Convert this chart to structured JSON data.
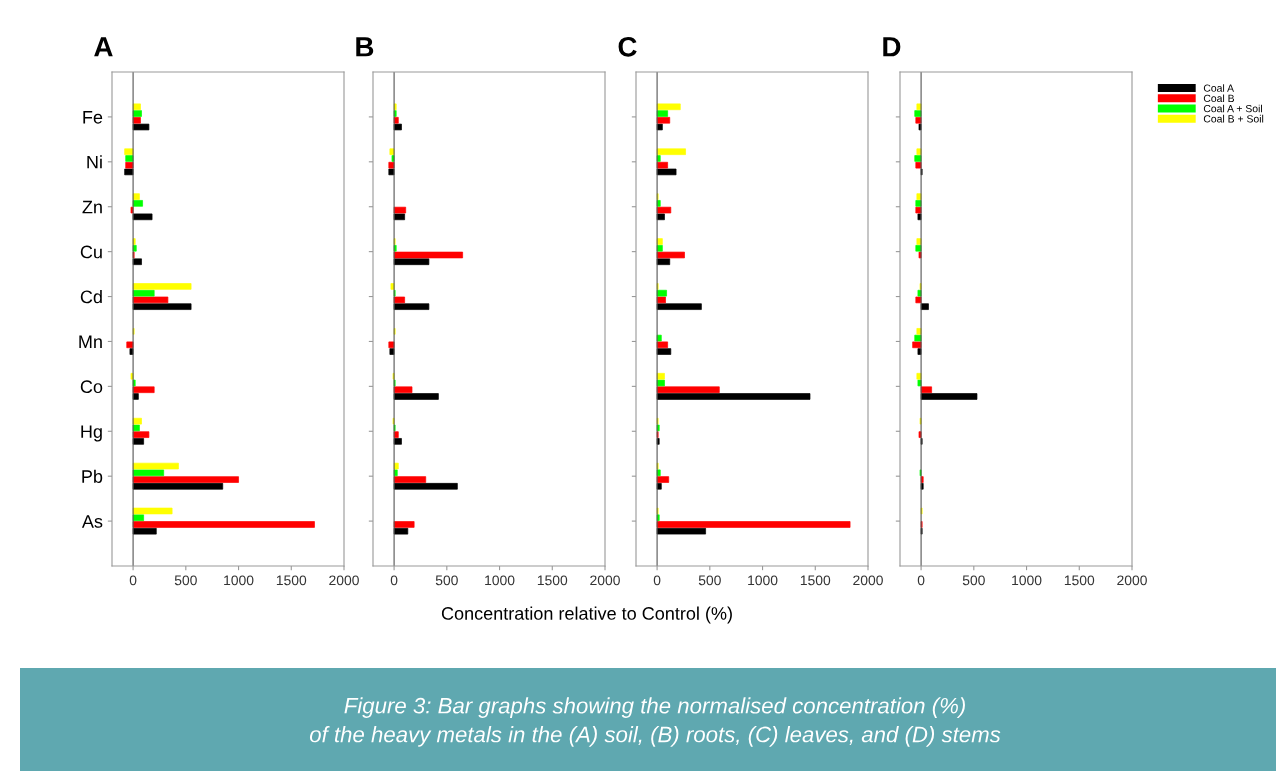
{
  "chart_data": [
    {
      "type": "bar",
      "orientation": "horizontal",
      "title": "A",
      "xlabel": "Concentration relative to Control (%)",
      "annotations": [
        "Figure 3: Bar graphs showing the normalised concentration (%)\nof the heavy metals in the (A) soil, (B) roots, (C) leaves, and (D) stems"
      ],
      "categories": [
        "Fe",
        "Ni",
        "Zn",
        "Cu",
        "Cd",
        "Mn",
        "Co",
        "Hg",
        "Pb",
        "As"
      ],
      "xlim": [
        -200,
        2000
      ],
      "xticks": [
        0,
        500,
        1000,
        1500,
        2000
      ],
      "legend": "top right",
      "series": [
        {
          "name": "Coal A",
          "color": "#000000",
          "values": [
            150,
            -80,
            180,
            80,
            550,
            -30,
            50,
            100,
            850,
            220
          ]
        },
        {
          "name": "Coal B",
          "color": "#ff0000",
          "values": [
            70,
            -70,
            -20,
            10,
            330,
            -60,
            200,
            150,
            1000,
            1720
          ]
        },
        {
          "name": "Coal A + Soil",
          "color": "#00ff00",
          "values": [
            80,
            -70,
            90,
            30,
            200,
            null,
            20,
            60,
            290,
            100
          ]
        },
        {
          "name": "Coal B + Soil",
          "color": "#ffff00",
          "values": [
            70,
            -80,
            60,
            20,
            550,
            10,
            -20,
            80,
            430,
            370
          ]
        }
      ]
    },
    {
      "type": "bar",
      "orientation": "horizontal",
      "title": "B",
      "tick_labels": "x",
      "categories": [
        null,
        null,
        null,
        null,
        null,
        null,
        null,
        null,
        null,
        null
      ],
      "xlim": [
        -200,
        2000
      ],
      "xticks": [
        0,
        500,
        1000,
        1500,
        2000
      ],
      "series": [
        {
          "color": "#000000",
          "values": [
            70,
            -50,
            100,
            330,
            330,
            -40,
            420,
            70,
            600,
            130
          ]
        },
        {
          "color": "#ff0000",
          "values": [
            40,
            -50,
            110,
            650,
            100,
            -50,
            170,
            40,
            300,
            190
          ]
        },
        {
          "color": "#00ff00",
          "values": [
            20,
            -20,
            null,
            20,
            10,
            null,
            10,
            10,
            30,
            null
          ]
        },
        {
          "color": "#ffff00",
          "values": [
            20,
            -40,
            null,
            10,
            -30,
            10,
            -10,
            -10,
            40,
            null
          ]
        }
      ]
    },
    {
      "type": "bar",
      "orientation": "horizontal",
      "title": "C",
      "tick_labels": "x",
      "categories": [
        null,
        null,
        null,
        null,
        null,
        null,
        null,
        null,
        null,
        null
      ],
      "xlim": [
        -200,
        2000
      ],
      "xticks": [
        0,
        500,
        1000,
        1500,
        2000
      ],
      "series": [
        {
          "color": "#000000",
          "values": [
            50,
            180,
            70,
            120,
            420,
            130,
            1450,
            20,
            40,
            460
          ]
        },
        {
          "color": "#ff0000",
          "values": [
            120,
            100,
            130,
            260,
            80,
            100,
            590,
            10,
            110,
            1830
          ]
        },
        {
          "color": "#00ff00",
          "values": [
            100,
            30,
            30,
            50,
            90,
            40,
            70,
            20,
            30,
            20
          ]
        },
        {
          "color": "#ffff00",
          "values": [
            220,
            270,
            10,
            50,
            10,
            null,
            70,
            10,
            10,
            10
          ]
        }
      ]
    },
    {
      "type": "bar",
      "orientation": "horizontal",
      "title": "D",
      "tick_labels": "x",
      "categories": [
        null,
        null,
        null,
        null,
        null,
        null,
        null,
        null,
        null,
        null
      ],
      "xlim": [
        -200,
        2000
      ],
      "xticks": [
        0,
        500,
        1000,
        1500,
        2000
      ],
      "series": [
        {
          "color": "#000000",
          "values": [
            -20,
            10,
            -30,
            null,
            70,
            -30,
            530,
            10,
            20,
            10
          ]
        },
        {
          "color": "#ff0000",
          "values": [
            -50,
            -50,
            -50,
            -20,
            -50,
            -80,
            100,
            -20,
            20,
            10
          ]
        },
        {
          "color": "#00ff00",
          "values": [
            -60,
            -60,
            -50,
            -50,
            -30,
            -60,
            -30,
            null,
            -10,
            null
          ]
        },
        {
          "color": "#ffff00",
          "values": [
            -40,
            -40,
            -40,
            -40,
            -10,
            -40,
            -40,
            -10,
            null,
            10
          ]
        }
      ]
    }
  ]
}
